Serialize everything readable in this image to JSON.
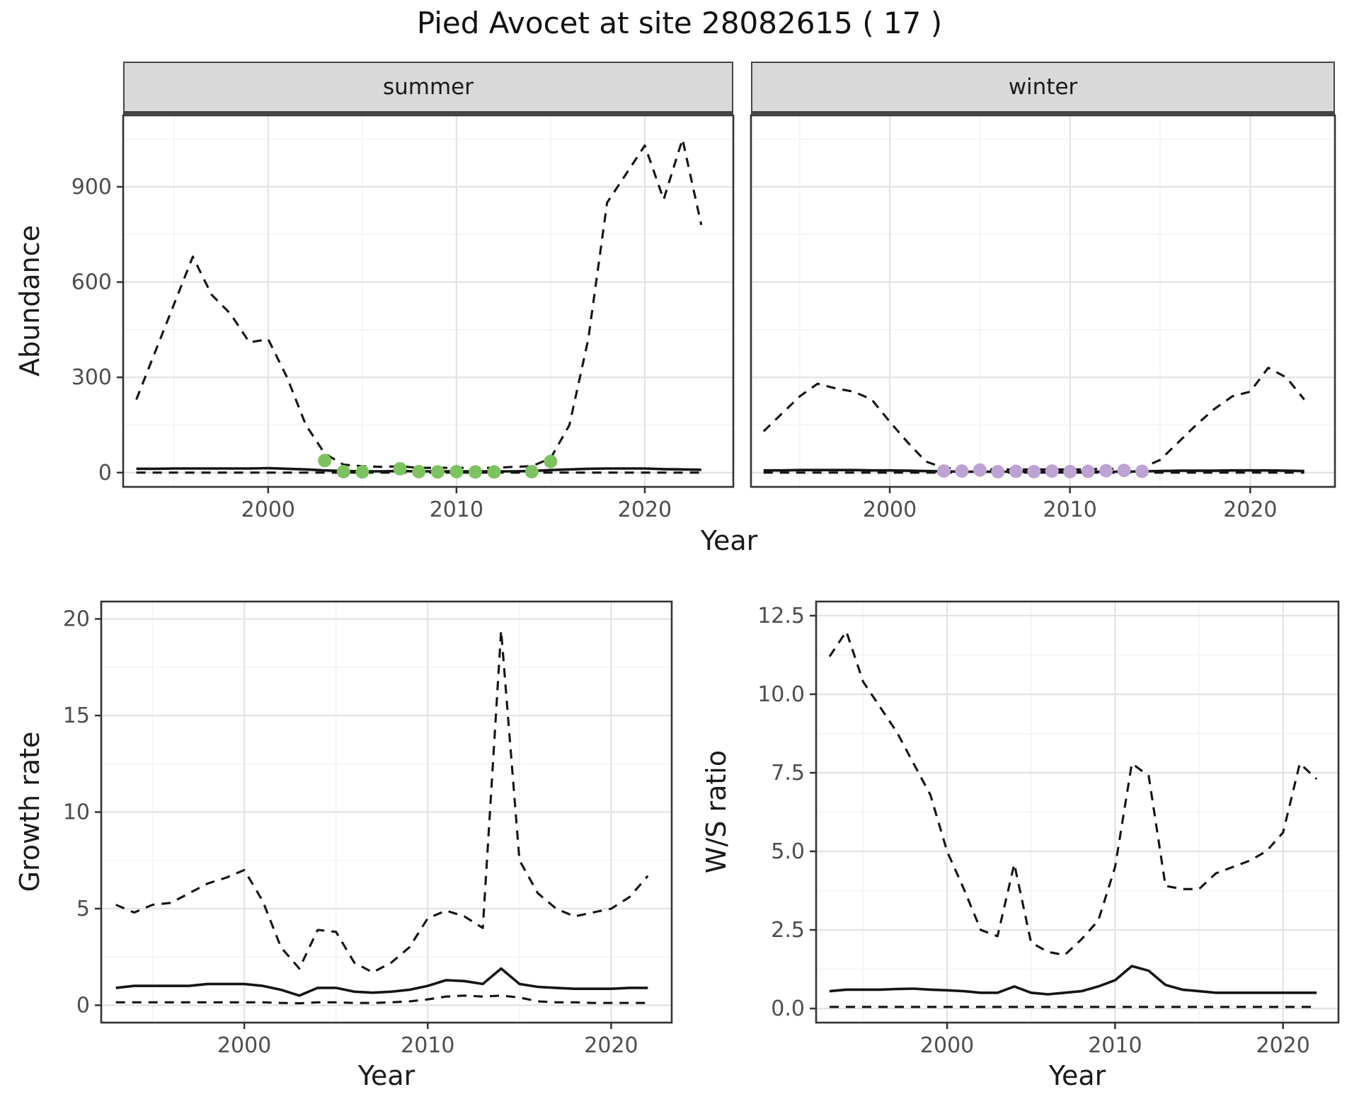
{
  "title": "Pied Avocet at site 28082615 ( 17 )",
  "facets": {
    "summer": "summer",
    "winter": "winter"
  },
  "axis_titles": {
    "abundance": "Abundance",
    "year_top": "Year",
    "growth_rate": "Growth rate",
    "ws_ratio": "W/S ratio",
    "year_bottom_left": "Year",
    "year_bottom_right": "Year"
  },
  "colors": {
    "line": "#141414",
    "summer_points": "#7cc35f",
    "winter_points": "#bda3d4",
    "strip_bg": "#d9d9d9",
    "grid_major": "#e4e4e4",
    "grid_minor": "#f3f3f3",
    "panel_border": "#333333",
    "tick_text": "#4d4d4d"
  },
  "chart_data": [
    {
      "type": "line",
      "panel": "summer",
      "facet_label": "summer",
      "ylabel": "Abundance",
      "xlabel": "Year",
      "xlim": [
        1992.3,
        2024.7
      ],
      "ylim": [
        -45,
        1125
      ],
      "xticks": [
        2000,
        2010,
        2020
      ],
      "xticklabels": [
        "2000",
        "2010",
        "2020"
      ],
      "yticks": [
        0,
        300,
        600,
        900
      ],
      "yticklabels": [
        "0",
        "300",
        "600",
        "900"
      ],
      "x": [
        1993,
        1994,
        1995,
        1996,
        1997,
        1998,
        1999,
        2000,
        2001,
        2002,
        2003,
        2004,
        2005,
        2006,
        2007,
        2008,
        2009,
        2010,
        2011,
        2012,
        2013,
        2014,
        2015,
        2016,
        2017,
        2018,
        2019,
        2020,
        2021,
        2022,
        2023
      ],
      "series": [
        {
          "name": "upper_ci",
          "style": "dashed",
          "values": [
            230,
            380,
            530,
            680,
            560,
            500,
            410,
            420,
            300,
            150,
            60,
            25,
            20,
            18,
            20,
            15,
            15,
            15,
            15,
            15,
            18,
            20,
            45,
            150,
            420,
            850,
            940,
            1030,
            860,
            1050,
            780
          ]
        },
        {
          "name": "estimate",
          "style": "solid",
          "values": [
            12,
            12,
            13,
            13,
            13,
            13,
            13,
            14,
            12,
            10,
            7,
            5,
            4,
            4,
            5,
            4,
            4,
            4,
            4,
            4,
            4,
            5,
            8,
            10,
            12,
            13,
            13,
            13,
            11,
            10,
            9
          ]
        },
        {
          "name": "lower_ci",
          "style": "dashed",
          "values": [
            0,
            0,
            0,
            0,
            0,
            0,
            0,
            0,
            0,
            0,
            0,
            0,
            0,
            0,
            0,
            0,
            0,
            0,
            0,
            0,
            0,
            0,
            0,
            0,
            0,
            0,
            0,
            0,
            0,
            0,
            0
          ]
        }
      ],
      "points": {
        "name": "observed-summer",
        "color": "#7cc35f",
        "x": [
          2003,
          2004,
          2005,
          2007,
          2008,
          2009,
          2010,
          2011,
          2012,
          2014,
          2015
        ],
        "y": [
          38,
          3,
          2,
          12,
          3,
          2,
          3,
          2,
          2,
          3,
          35
        ]
      }
    },
    {
      "type": "line",
      "panel": "winter",
      "facet_label": "winter",
      "ylabel": "Abundance",
      "xlabel": "Year",
      "xlim": [
        1992.3,
        2024.7
      ],
      "ylim": [
        -45,
        1125
      ],
      "xticks": [
        2000,
        2010,
        2020
      ],
      "xticklabels": [
        "2000",
        "2010",
        "2020"
      ],
      "yticks": [
        0,
        300,
        600,
        900
      ],
      "yticklabels": [
        "0",
        "300",
        "600",
        "900"
      ],
      "x": [
        1993,
        1994,
        1995,
        1996,
        1997,
        1998,
        1999,
        2000,
        2001,
        2002,
        2003,
        2004,
        2005,
        2006,
        2007,
        2008,
        2009,
        2010,
        2011,
        2012,
        2013,
        2014,
        2015,
        2016,
        2017,
        2018,
        2019,
        2020,
        2021,
        2022,
        2023
      ],
      "series": [
        {
          "name": "upper_ci",
          "style": "dashed",
          "values": [
            130,
            185,
            240,
            280,
            265,
            255,
            230,
            160,
            95,
            35,
            15,
            12,
            10,
            10,
            10,
            10,
            10,
            10,
            10,
            12,
            12,
            15,
            40,
            95,
            150,
            200,
            240,
            255,
            330,
            300,
            230
          ]
        },
        {
          "name": "estimate",
          "style": "solid",
          "values": [
            7,
            7,
            8,
            8,
            8,
            8,
            7,
            7,
            6,
            5,
            4,
            3,
            3,
            3,
            3,
            3,
            3,
            3,
            3,
            3,
            3,
            4,
            5,
            6,
            6,
            6,
            7,
            7,
            7,
            6,
            5
          ]
        },
        {
          "name": "lower_ci",
          "style": "dashed",
          "values": [
            0,
            0,
            0,
            0,
            0,
            0,
            0,
            0,
            0,
            0,
            0,
            0,
            0,
            0,
            0,
            0,
            0,
            0,
            0,
            0,
            0,
            0,
            0,
            0,
            0,
            0,
            0,
            0,
            0,
            0,
            0
          ]
        }
      ],
      "points": {
        "name": "observed-winter",
        "color": "#bda3d4",
        "x": [
          2003,
          2004,
          2005,
          2006,
          2007,
          2008,
          2009,
          2010,
          2011,
          2012,
          2013,
          2014
        ],
        "y": [
          5,
          5,
          8,
          3,
          4,
          3,
          5,
          3,
          4,
          6,
          7,
          4
        ]
      }
    },
    {
      "type": "line",
      "panel": "growth",
      "ylabel": "Growth rate",
      "xlabel": "Year",
      "xlim": [
        1992.2,
        2023.3
      ],
      "ylim": [
        -0.9,
        20.9
      ],
      "xticks": [
        2000,
        2010,
        2020
      ],
      "xticklabels": [
        "2000",
        "2010",
        "2020"
      ],
      "yticks": [
        0,
        5,
        10,
        15,
        20
      ],
      "yticklabels": [
        "0",
        "5",
        "10",
        "15",
        "20"
      ],
      "x": [
        1993,
        1994,
        1995,
        1996,
        1997,
        1998,
        1999,
        2000,
        2001,
        2002,
        2003,
        2004,
        2005,
        2006,
        2007,
        2008,
        2009,
        2010,
        2011,
        2012,
        2013,
        2014,
        2015,
        2016,
        2017,
        2018,
        2019,
        2020,
        2021,
        2022
      ],
      "series": [
        {
          "name": "upper_ci",
          "style": "dashed",
          "values": [
            5.2,
            4.8,
            5.2,
            5.3,
            5.8,
            6.3,
            6.6,
            7.0,
            5.4,
            3.0,
            1.9,
            3.9,
            3.8,
            2.2,
            1.7,
            2.2,
            3.0,
            4.5,
            4.9,
            4.6,
            4.0,
            19.4,
            7.5,
            5.8,
            5.0,
            4.6,
            4.8,
            5.0,
            5.6,
            6.7
          ]
        },
        {
          "name": "estimate",
          "style": "solid",
          "values": [
            0.9,
            1.0,
            1.0,
            1.0,
            1.0,
            1.1,
            1.1,
            1.1,
            1.0,
            0.8,
            0.5,
            0.9,
            0.9,
            0.7,
            0.65,
            0.7,
            0.8,
            1.0,
            1.3,
            1.25,
            1.1,
            1.9,
            1.1,
            0.95,
            0.9,
            0.85,
            0.85,
            0.85,
            0.9,
            0.9
          ]
        },
        {
          "name": "lower_ci",
          "style": "dashed",
          "values": [
            0.15,
            0.15,
            0.15,
            0.15,
            0.15,
            0.15,
            0.15,
            0.15,
            0.15,
            0.12,
            0.1,
            0.15,
            0.15,
            0.12,
            0.12,
            0.15,
            0.2,
            0.3,
            0.45,
            0.5,
            0.45,
            0.5,
            0.4,
            0.2,
            0.15,
            0.15,
            0.12,
            0.12,
            0.12,
            0.12
          ]
        }
      ]
    },
    {
      "type": "line",
      "panel": "ratio",
      "ylabel": "W/S ratio",
      "xlabel": "Year",
      "xlim": [
        1992.2,
        2023.3
      ],
      "ylim": [
        -0.45,
        12.95
      ],
      "xticks": [
        2000,
        2010,
        2020
      ],
      "xticklabels": [
        "2000",
        "2010",
        "2020"
      ],
      "yticks": [
        0,
        2.5,
        5,
        7.5,
        10,
        12.5
      ],
      "yticklabels": [
        "0.0",
        "2.5",
        "5.0",
        "7.5",
        "10.0",
        "12.5"
      ],
      "x": [
        1993,
        1994,
        1995,
        1996,
        1997,
        1998,
        1999,
        2000,
        2001,
        2002,
        2003,
        2004,
        2005,
        2006,
        2007,
        2008,
        2009,
        2010,
        2011,
        2012,
        2013,
        2014,
        2015,
        2016,
        2017,
        2018,
        2019,
        2020,
        2021,
        2022
      ],
      "series": [
        {
          "name": "upper_ci",
          "style": "dashed",
          "values": [
            11.2,
            12.0,
            10.4,
            9.6,
            8.8,
            7.8,
            6.8,
            5.0,
            3.8,
            2.5,
            2.3,
            4.6,
            2.1,
            1.8,
            1.7,
            2.2,
            2.8,
            4.5,
            7.8,
            7.4,
            3.9,
            3.8,
            3.8,
            4.3,
            4.5,
            4.7,
            5.0,
            5.6,
            7.8,
            7.3
          ]
        },
        {
          "name": "estimate",
          "style": "solid",
          "values": [
            0.55,
            0.6,
            0.6,
            0.6,
            0.62,
            0.63,
            0.6,
            0.58,
            0.55,
            0.5,
            0.5,
            0.7,
            0.5,
            0.45,
            0.5,
            0.55,
            0.7,
            0.9,
            1.35,
            1.2,
            0.75,
            0.6,
            0.55,
            0.5,
            0.5,
            0.5,
            0.5,
            0.5,
            0.5,
            0.5
          ]
        },
        {
          "name": "lower_ci",
          "style": "dashed",
          "values": [
            0.05,
            0.05,
            0.05,
            0.05,
            0.05,
            0.05,
            0.05,
            0.05,
            0.05,
            0.05,
            0.05,
            0.05,
            0.05,
            0.05,
            0.05,
            0.05,
            0.05,
            0.05,
            0.05,
            0.05,
            0.05,
            0.05,
            0.05,
            0.05,
            0.05,
            0.05,
            0.05,
            0.05,
            0.05,
            0.05
          ]
        }
      ]
    }
  ]
}
